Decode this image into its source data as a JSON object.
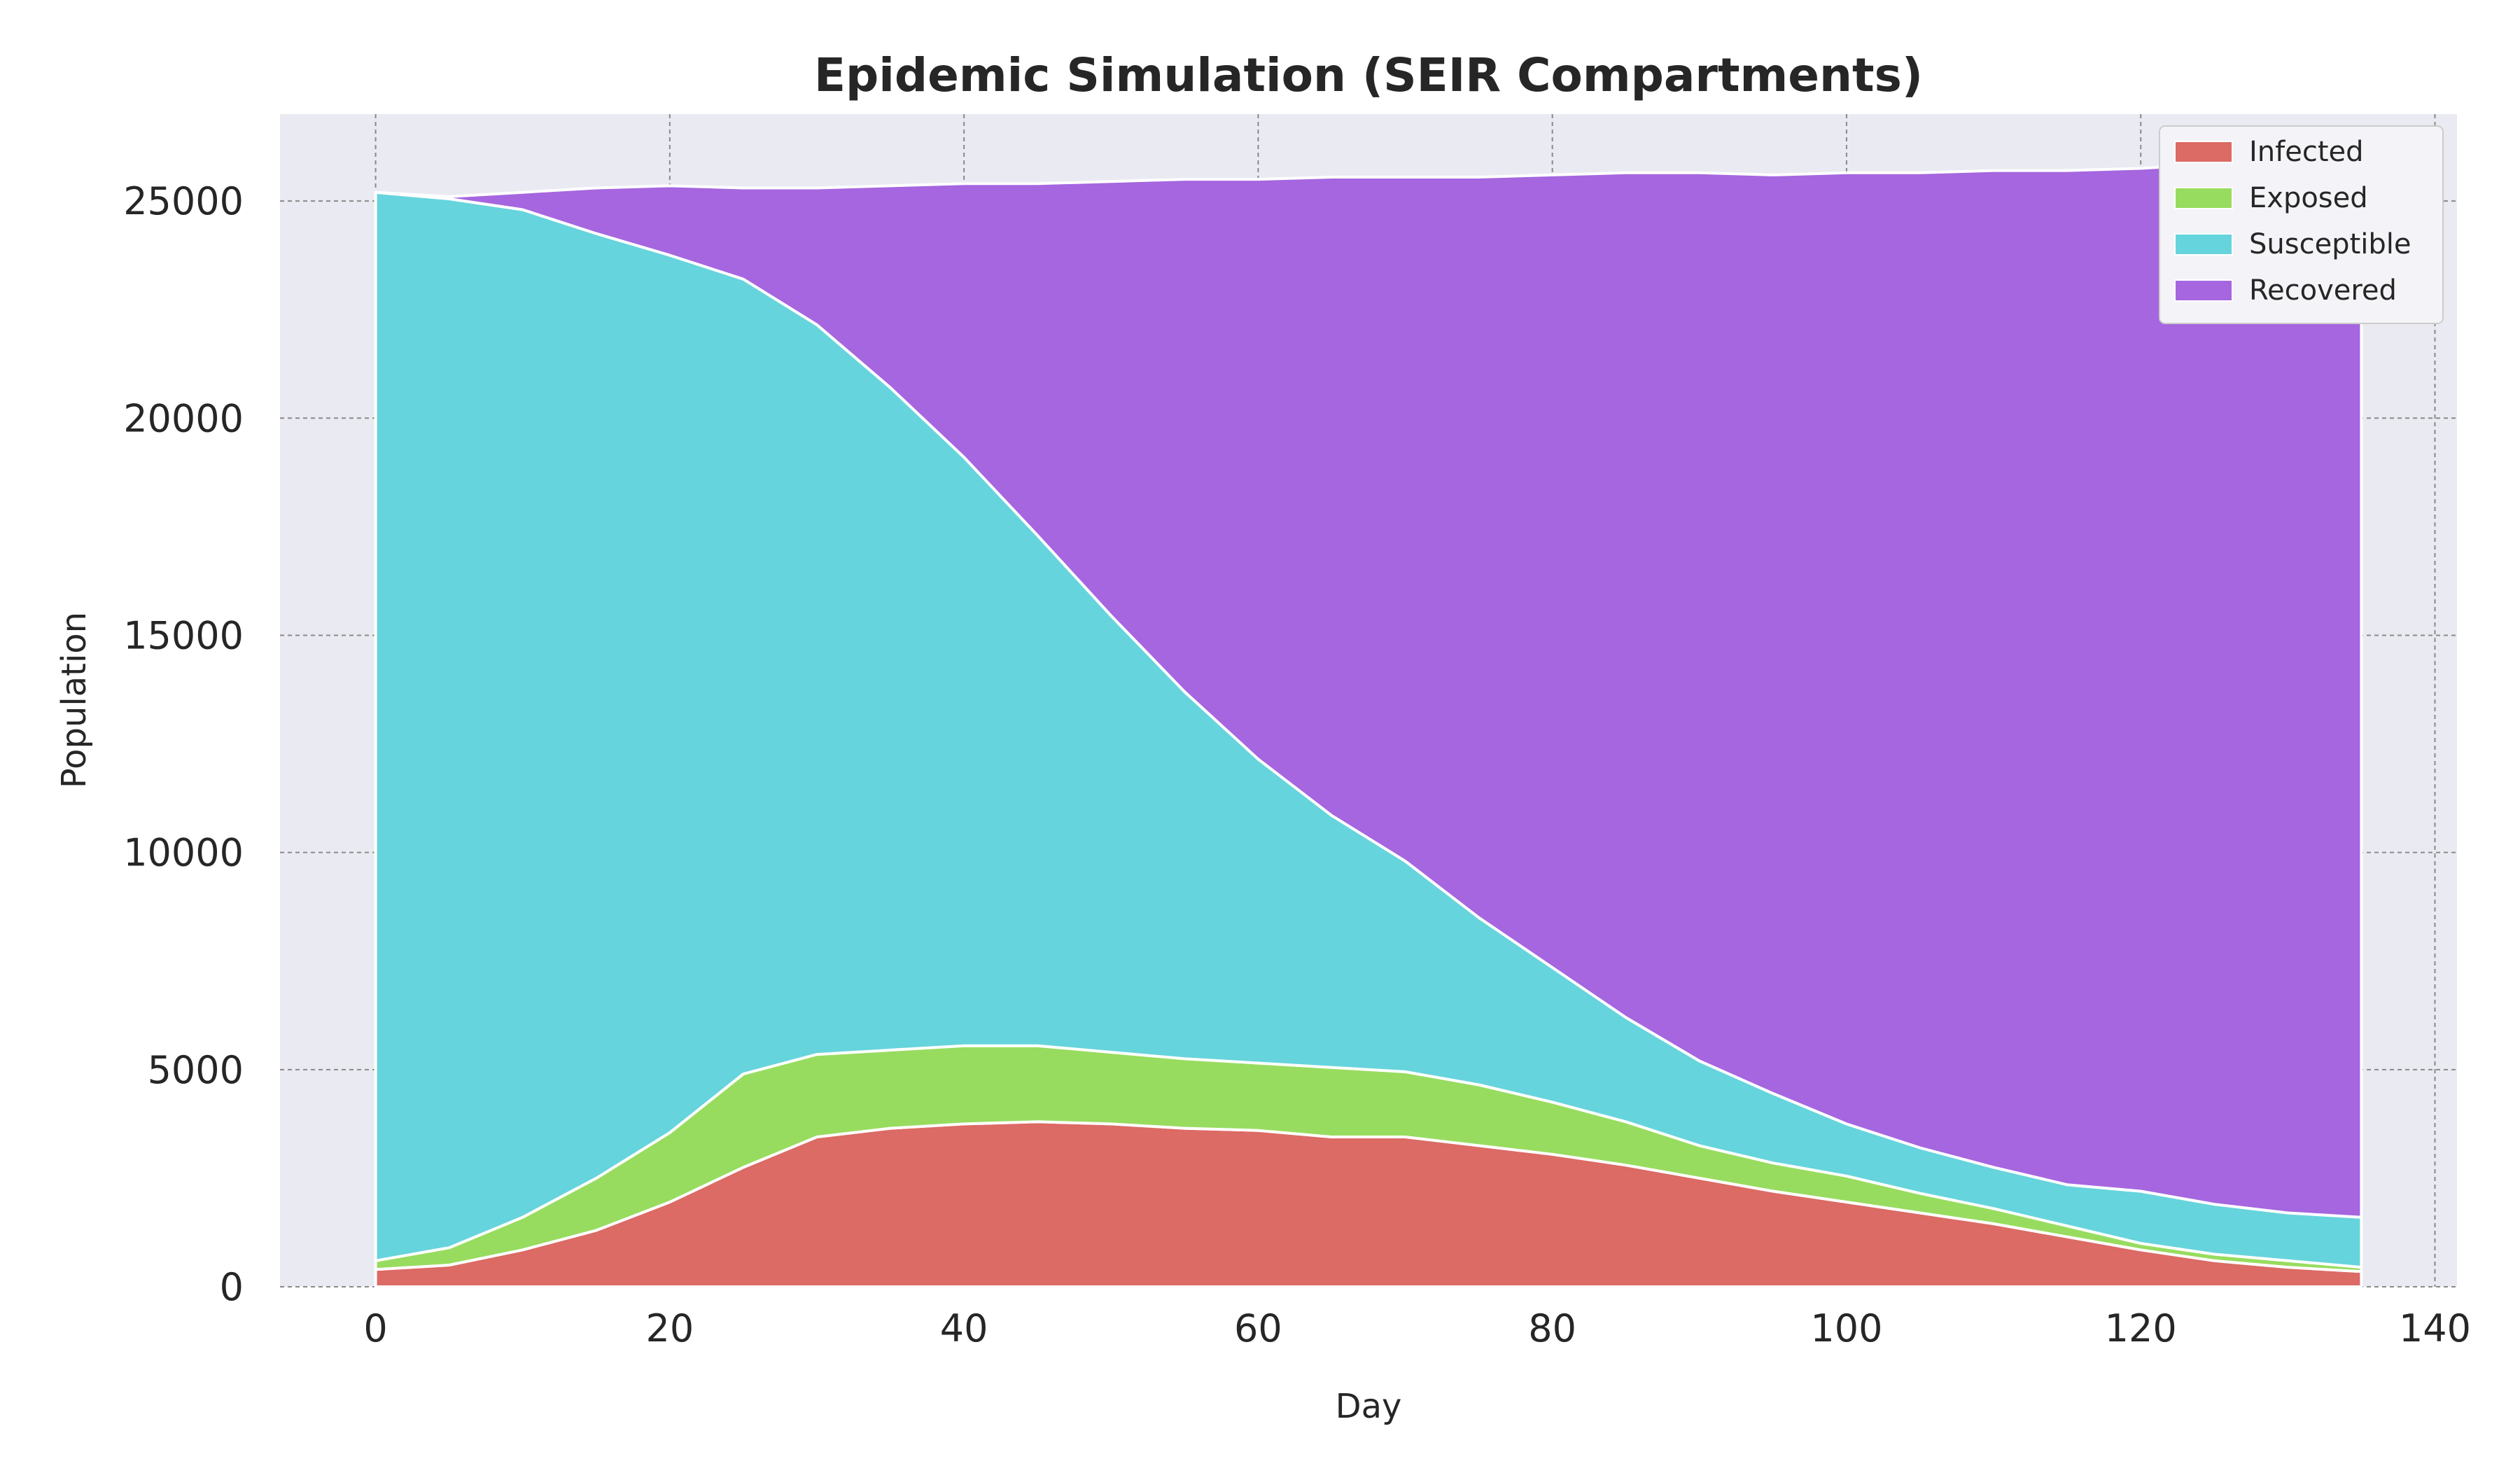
{
  "chart_data": {
    "type": "area",
    "stacked": true,
    "title": "Epidemic Simulation (SEIR Compartments)",
    "xlabel": "Day",
    "ylabel": "Population",
    "xlim": [
      -6.5,
      141.5
    ],
    "ylim": [
      0,
      27000
    ],
    "xticks": [
      0,
      20,
      40,
      60,
      80,
      100,
      120,
      140
    ],
    "yticks": [
      0,
      5000,
      10000,
      15000,
      20000,
      25000
    ],
    "grid": true,
    "legend_position": "top-right",
    "x": [
      0,
      5,
      10,
      15,
      20,
      25,
      30,
      35,
      40,
      45,
      50,
      55,
      60,
      65,
      70,
      75,
      80,
      85,
      90,
      95,
      100,
      105,
      110,
      115,
      120,
      125,
      130,
      135
    ],
    "series": [
      {
        "name": "Infected",
        "color": "#dc6a65",
        "values": [
          400,
          500,
          850,
          1300,
          1950,
          2750,
          3450,
          3650,
          3750,
          3800,
          3750,
          3650,
          3600,
          3450,
          3450,
          3250,
          3050,
          2800,
          2500,
          2200,
          1950,
          1700,
          1450,
          1150,
          850,
          600,
          450,
          350
        ]
      },
      {
        "name": "Exposed",
        "color": "#98dc5f",
        "values": [
          200,
          400,
          750,
          1200,
          1600,
          2150,
          1900,
          1800,
          1800,
          1750,
          1650,
          1600,
          1550,
          1600,
          1500,
          1400,
          1200,
          1000,
          750,
          650,
          600,
          450,
          350,
          250,
          150,
          150,
          150,
          100
        ]
      },
      {
        "name": "Susceptible",
        "color": "#66d4dc",
        "values": [
          24600,
          24150,
          23200,
          21750,
          20200,
          18300,
          16800,
          15250,
          13550,
          11750,
          10050,
          8450,
          7000,
          5800,
          4850,
          3850,
          3100,
          2400,
          1950,
          1600,
          1200,
          1050,
          950,
          950,
          1200,
          1150,
          1100,
          1150
        ]
      },
      {
        "name": "Recovered",
        "color": "#a566df",
        "values": [
          0,
          50,
          400,
          1050,
          1600,
          2100,
          3150,
          4650,
          6300,
          8100,
          10000,
          11800,
          13350,
          14700,
          15750,
          17050,
          18250,
          19450,
          20450,
          21150,
          21900,
          22450,
          22950,
          23350,
          23550,
          23950,
          24100,
          24250
        ]
      }
    ]
  }
}
